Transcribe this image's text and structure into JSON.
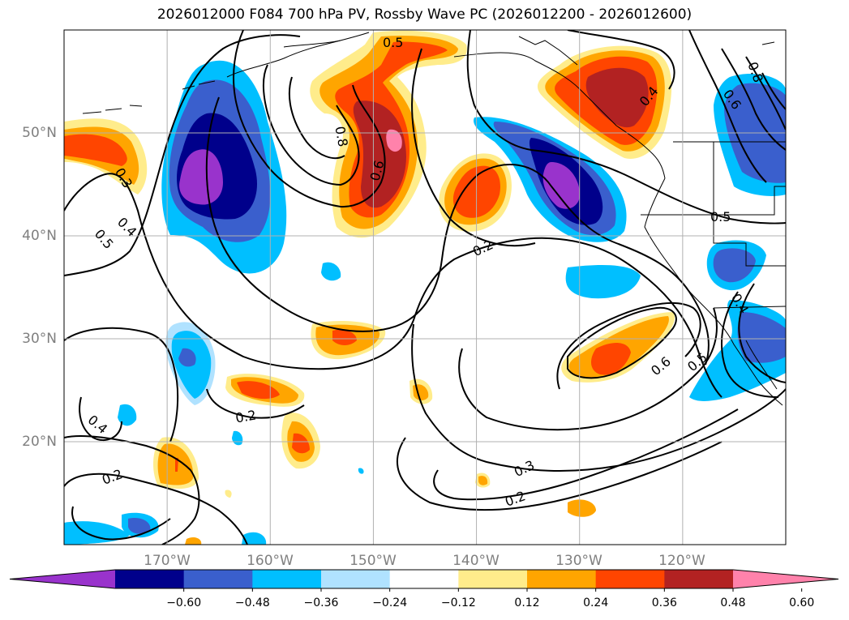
{
  "title": "2026012000 F084 700 hPa PV, Rossby Wave PC (2026012200 - 2026012600)",
  "lat_labels": [
    "50°N",
    "40°N",
    "30°N",
    "20°N"
  ],
  "lon_labels": [
    "170°W",
    "160°W",
    "150°W",
    "140°W",
    "130°W",
    "120°W"
  ],
  "colorbar": {
    "tick_labels": [
      "−0.60",
      "−0.48",
      "−0.36",
      "−0.24",
      "−0.12",
      "0.12",
      "0.24",
      "0.36",
      "0.48",
      "0.60"
    ],
    "colors": [
      "#9933cc",
      "#00008b",
      "#3a5fcd",
      "#00bfff",
      "#b0e2ff",
      "#ffffff",
      "#ffec8b",
      "#ffa500",
      "#ff4500",
      "#b22222",
      "#ff82ab"
    ]
  },
  "contour_labels": [
    "0.5",
    "0.8",
    "0.6",
    "0.3",
    "0.4",
    "0.5",
    "0.2",
    "0.2",
    "0.4",
    "0.2",
    "0.3",
    "0.2",
    "0.6",
    "0.5",
    "0.4",
    "0.8",
    "0.6",
    "0.5",
    "0.4"
  ],
  "map": {
    "lat_range": [
      10,
      60
    ],
    "lon_range": [
      -180,
      -110
    ],
    "shading_colors": {
      "purple": "#9933cc",
      "navy": "#00008b",
      "royal": "#3a5fcd",
      "sky": "#00bfff",
      "lightblue": "#b0e2ff",
      "yellow": "#ffec8b",
      "orange": "#ffa500",
      "redorange": "#ff4500",
      "firebrick": "#b22222",
      "pink": "#ff82ab"
    }
  }
}
